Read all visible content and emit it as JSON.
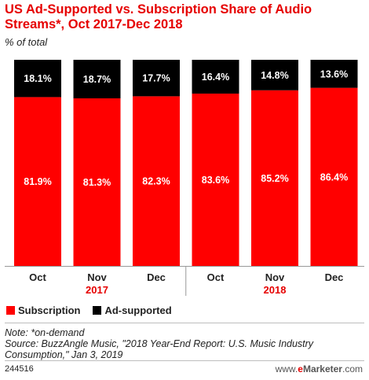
{
  "chart_data": {
    "type": "bar",
    "stacked": true,
    "title": "US Ad-Supported vs. Subscription Share of Audio Streams*, Oct 2017-Dec 2018",
    "subtitle": "% of total",
    "categories": [
      "Oct",
      "Nov",
      "Dec",
      "Oct",
      "Nov",
      "Dec"
    ],
    "groups": [
      {
        "label": "2017",
        "categories": [
          "Oct",
          "Nov",
          "Dec"
        ]
      },
      {
        "label": "2018",
        "categories": [
          "Oct",
          "Nov",
          "Dec"
        ]
      }
    ],
    "series": [
      {
        "name": "Subscription",
        "color": "#ff0000",
        "values": [
          81.9,
          81.3,
          82.3,
          83.6,
          85.2,
          86.4
        ]
      },
      {
        "name": "Ad-supported",
        "color": "#000000",
        "values": [
          18.1,
          18.7,
          17.7,
          16.4,
          14.8,
          13.6
        ]
      }
    ],
    "ylim": [
      0,
      100
    ],
    "value_suffix": "%",
    "legend": "bottom-left"
  },
  "notes": {
    "note": "Note: *on-demand",
    "source": "Source: BuzzAngle Music, \"2018 Year-End Report: U.S. Music Industry Consumption,\" Jan 3, 2019"
  },
  "footer": {
    "id": "244516",
    "brand_prefix": "www.",
    "brand_e": "e",
    "brand_name": "Marketer",
    "brand_suffix": ".com"
  }
}
